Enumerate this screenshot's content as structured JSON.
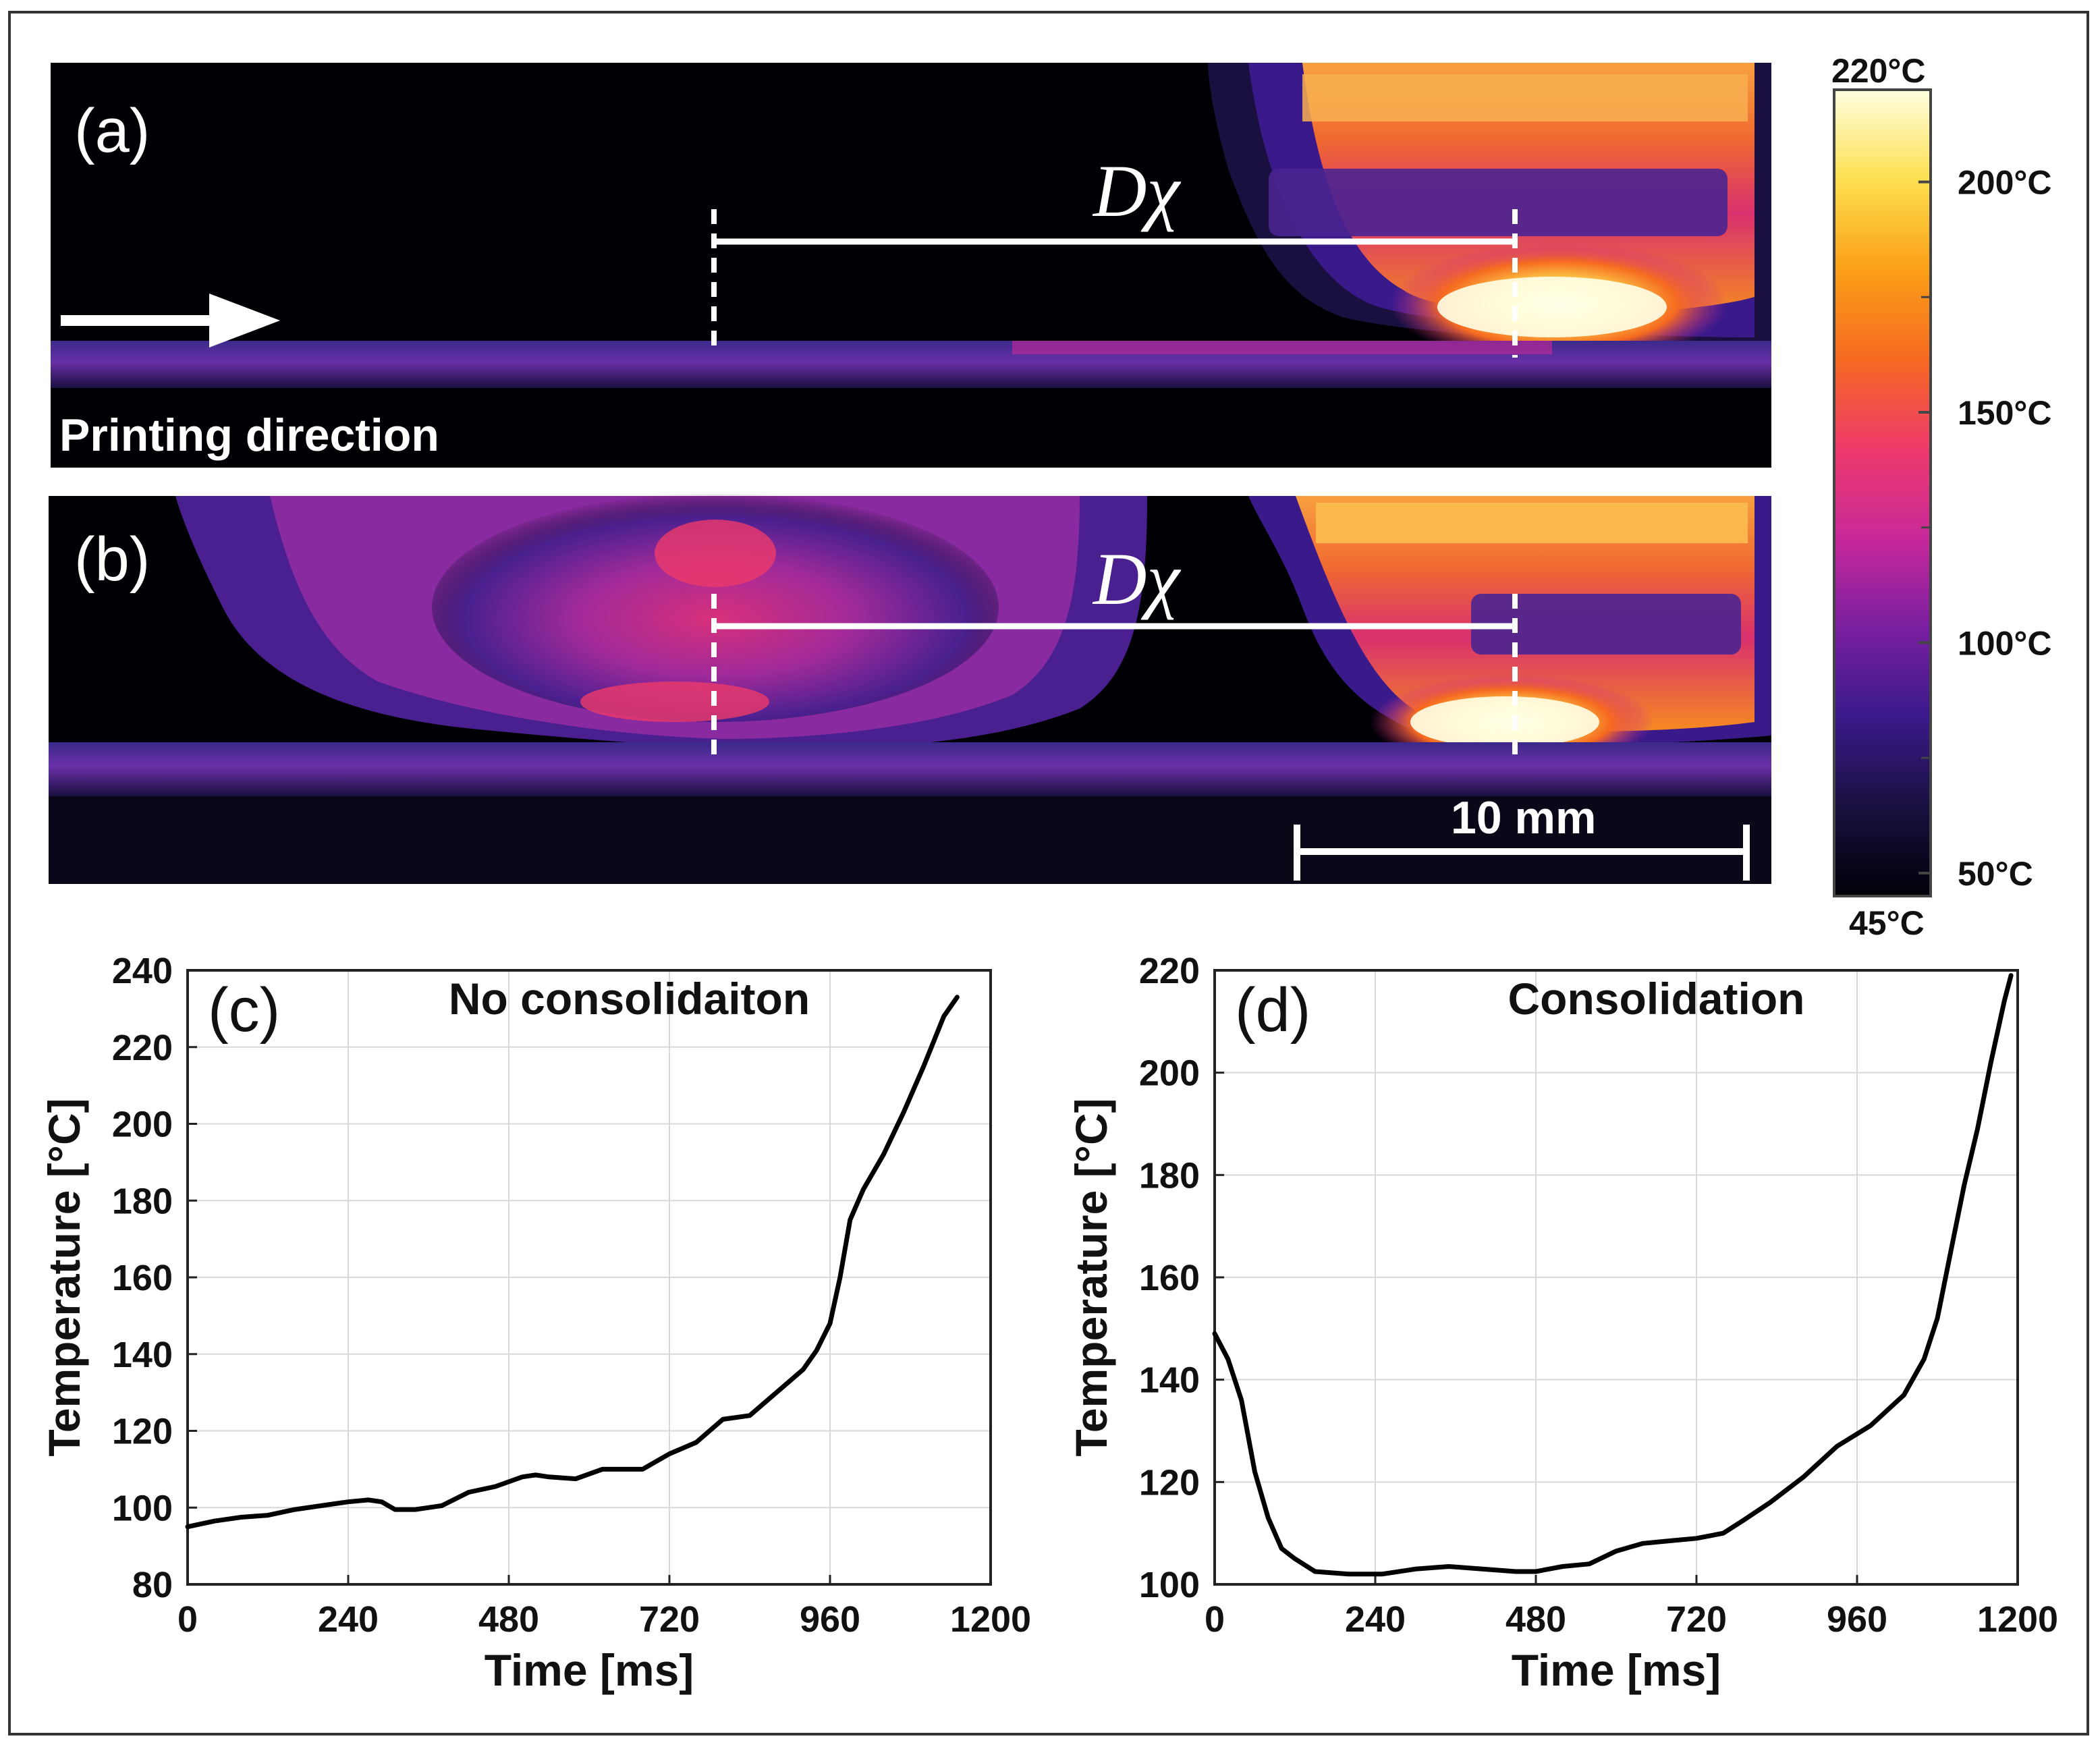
{
  "panel_a": {
    "label": "(a)",
    "annotation": "Dχ",
    "direction_label": "Printing direction"
  },
  "panel_b": {
    "label": "(b)",
    "annotation": "Dχ",
    "scale_bar_label": "10 mm"
  },
  "colorbar": {
    "top_label": "220°C",
    "bottom_label": "45°C",
    "tick_labels": [
      "200°C",
      "150°C",
      "100°C",
      "50°C"
    ],
    "tick_values": [
      200,
      150,
      100,
      50
    ],
    "min": 45,
    "max": 220,
    "colors": [
      "#000008",
      "#1a1040",
      "#3a1a8a",
      "#7a1fa0",
      "#c8289a",
      "#ee3a6a",
      "#f66a20",
      "#fba018",
      "#fde050",
      "#ffffe0"
    ]
  },
  "chart_data": [
    {
      "id": "c",
      "type": "line",
      "panel_label": "(c)",
      "title": "No consolidaiton",
      "xlabel": "Time [ms]",
      "ylabel": "Temperature [°C]",
      "xlim": [
        0,
        1200
      ],
      "ylim": [
        80,
        240
      ],
      "xticks": [
        0,
        240,
        480,
        720,
        960,
        1200
      ],
      "yticks": [
        80,
        100,
        120,
        140,
        160,
        180,
        200,
        220,
        240
      ],
      "grid": true,
      "series": [
        {
          "name": "No consolidaiton",
          "x": [
            0,
            40,
            80,
            120,
            160,
            200,
            240,
            270,
            290,
            310,
            340,
            380,
            420,
            460,
            500,
            520,
            540,
            580,
            620,
            680,
            720,
            760,
            800,
            840,
            880,
            920,
            940,
            960,
            975,
            990,
            1010,
            1040,
            1070,
            1100,
            1130,
            1150
          ],
          "y": [
            95,
            96.5,
            97.5,
            98,
            99.5,
            100.5,
            101.5,
            102,
            101.5,
            99.5,
            99.5,
            100.5,
            104,
            105.5,
            108,
            108.5,
            108,
            107.5,
            110,
            110,
            114,
            117,
            123,
            124,
            130,
            136,
            141,
            148,
            160,
            175,
            183,
            192,
            203,
            215,
            228,
            233
          ]
        }
      ]
    },
    {
      "id": "d",
      "type": "line",
      "panel_label": "(d)",
      "title": "Consolidation",
      "xlabel": "Time [ms]",
      "ylabel": "Temperature [°C]",
      "xlim": [
        0,
        1200
      ],
      "ylim": [
        100,
        220
      ],
      "xticks": [
        0,
        240,
        480,
        720,
        960,
        1200
      ],
      "yticks": [
        100,
        120,
        140,
        160,
        180,
        200,
        220
      ],
      "grid": true,
      "series": [
        {
          "name": "Consolidation",
          "x": [
            0,
            20,
            40,
            60,
            80,
            100,
            120,
            150,
            200,
            250,
            300,
            350,
            400,
            450,
            480,
            520,
            560,
            600,
            640,
            680,
            720,
            760,
            790,
            830,
            880,
            930,
            980,
            1030,
            1060,
            1080,
            1100,
            1120,
            1140,
            1160,
            1180,
            1190
          ],
          "y": [
            149,
            144,
            136,
            122,
            113,
            107,
            105,
            102.5,
            102,
            102,
            103,
            103.5,
            103,
            102.5,
            102.5,
            103.5,
            104,
            106.5,
            108,
            108.5,
            109,
            110,
            112.5,
            116,
            121,
            127,
            131,
            137,
            144,
            152,
            165,
            178,
            189,
            202,
            214,
            219
          ]
        }
      ]
    }
  ]
}
